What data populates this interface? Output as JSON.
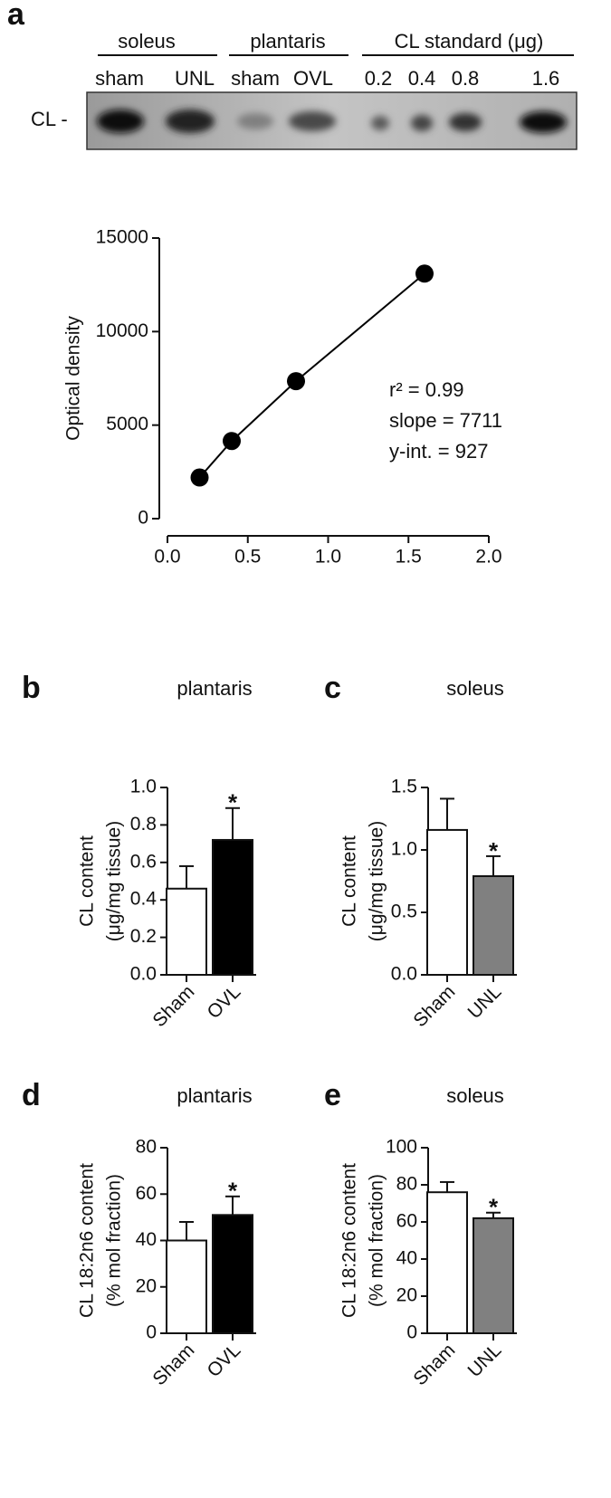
{
  "panel_labels": [
    "a",
    "b",
    "c",
    "d",
    "e"
  ],
  "blot": {
    "groups": [
      "soleus",
      "plantaris",
      "CL standard (μg)"
    ],
    "lanes": [
      "sham",
      "UNL",
      "sham",
      "OVL",
      "0.2",
      "0.4",
      "0.8",
      "1.6"
    ],
    "row_label": "CL -"
  },
  "chart_data": [
    {
      "type": "scatter",
      "ylabel": "Optical density",
      "x": [
        0.2,
        0.4,
        0.8,
        1.6
      ],
      "values": [
        2200,
        4150,
        7350,
        13100
      ],
      "color": "#000000",
      "xlim": [
        0,
        2
      ],
      "ylim": [
        0,
        15000
      ],
      "xticks": [
        {
          "value": 0,
          "label": "0.0"
        },
        0.5,
        {
          "value": 1,
          "label": "1.0"
        },
        1.5,
        {
          "value": 2,
          "label": "2.0"
        }
      ],
      "yticks": [
        0,
        5000,
        10000,
        15000
      ],
      "annotations": [
        "r² = 0.99",
        "slope = 7711",
        "y-int. = 927"
      ]
    },
    {
      "type": "bar",
      "title": "plantaris",
      "ylabel": [
        "CL content",
        "(μg/mg tissue)"
      ],
      "categories": [
        "Sham",
        "OVL"
      ],
      "values": [
        0.46,
        0.72
      ],
      "errors": [
        0.12,
        0.17
      ],
      "colors": [
        "#ffffff",
        "#000000"
      ],
      "markers": [
        null,
        "*"
      ],
      "ylim": [
        0,
        1
      ],
      "yticks": [
        {
          "value": 0,
          "label": "0.0"
        },
        0.2,
        0.4,
        0.6,
        0.8,
        {
          "value": 1,
          "label": "1.0"
        }
      ]
    },
    {
      "type": "bar",
      "title": "soleus",
      "ylabel": [
        "CL content",
        "(μg/mg tissue)"
      ],
      "categories": [
        "Sham",
        "UNL"
      ],
      "values": [
        1.16,
        0.79
      ],
      "errors": [
        0.25,
        0.16
      ],
      "colors": [
        "#ffffff",
        "#808080"
      ],
      "markers": [
        null,
        "*"
      ],
      "ylim": [
        0,
        1.5
      ],
      "yticks": [
        {
          "value": 0,
          "label": "0.0"
        },
        0.5,
        {
          "value": 1,
          "label": "1.0"
        },
        1.5
      ]
    },
    {
      "type": "bar",
      "title": "plantaris",
      "ylabel": [
        "CL 18:2n6 content",
        "(% mol fraction)"
      ],
      "categories": [
        "Sham",
        "OVL"
      ],
      "values": [
        40,
        51
      ],
      "errors": [
        8,
        8
      ],
      "colors": [
        "#ffffff",
        "#000000"
      ],
      "markers": [
        null,
        "*"
      ],
      "ylim": [
        0,
        80
      ],
      "yticks": [
        0,
        20,
        40,
        60,
        80
      ]
    },
    {
      "type": "bar",
      "title": "soleus",
      "ylabel": [
        "CL 18:2n6 content",
        "(% mol fraction)"
      ],
      "categories": [
        "Sham",
        "UNL"
      ],
      "values": [
        76,
        62
      ],
      "errors": [
        5.5,
        3
      ],
      "colors": [
        "#ffffff",
        "#808080"
      ],
      "markers": [
        null,
        "*"
      ],
      "ylim": [
        0,
        100
      ],
      "yticks": [
        0,
        20,
        40,
        60,
        80,
        100
      ]
    }
  ]
}
